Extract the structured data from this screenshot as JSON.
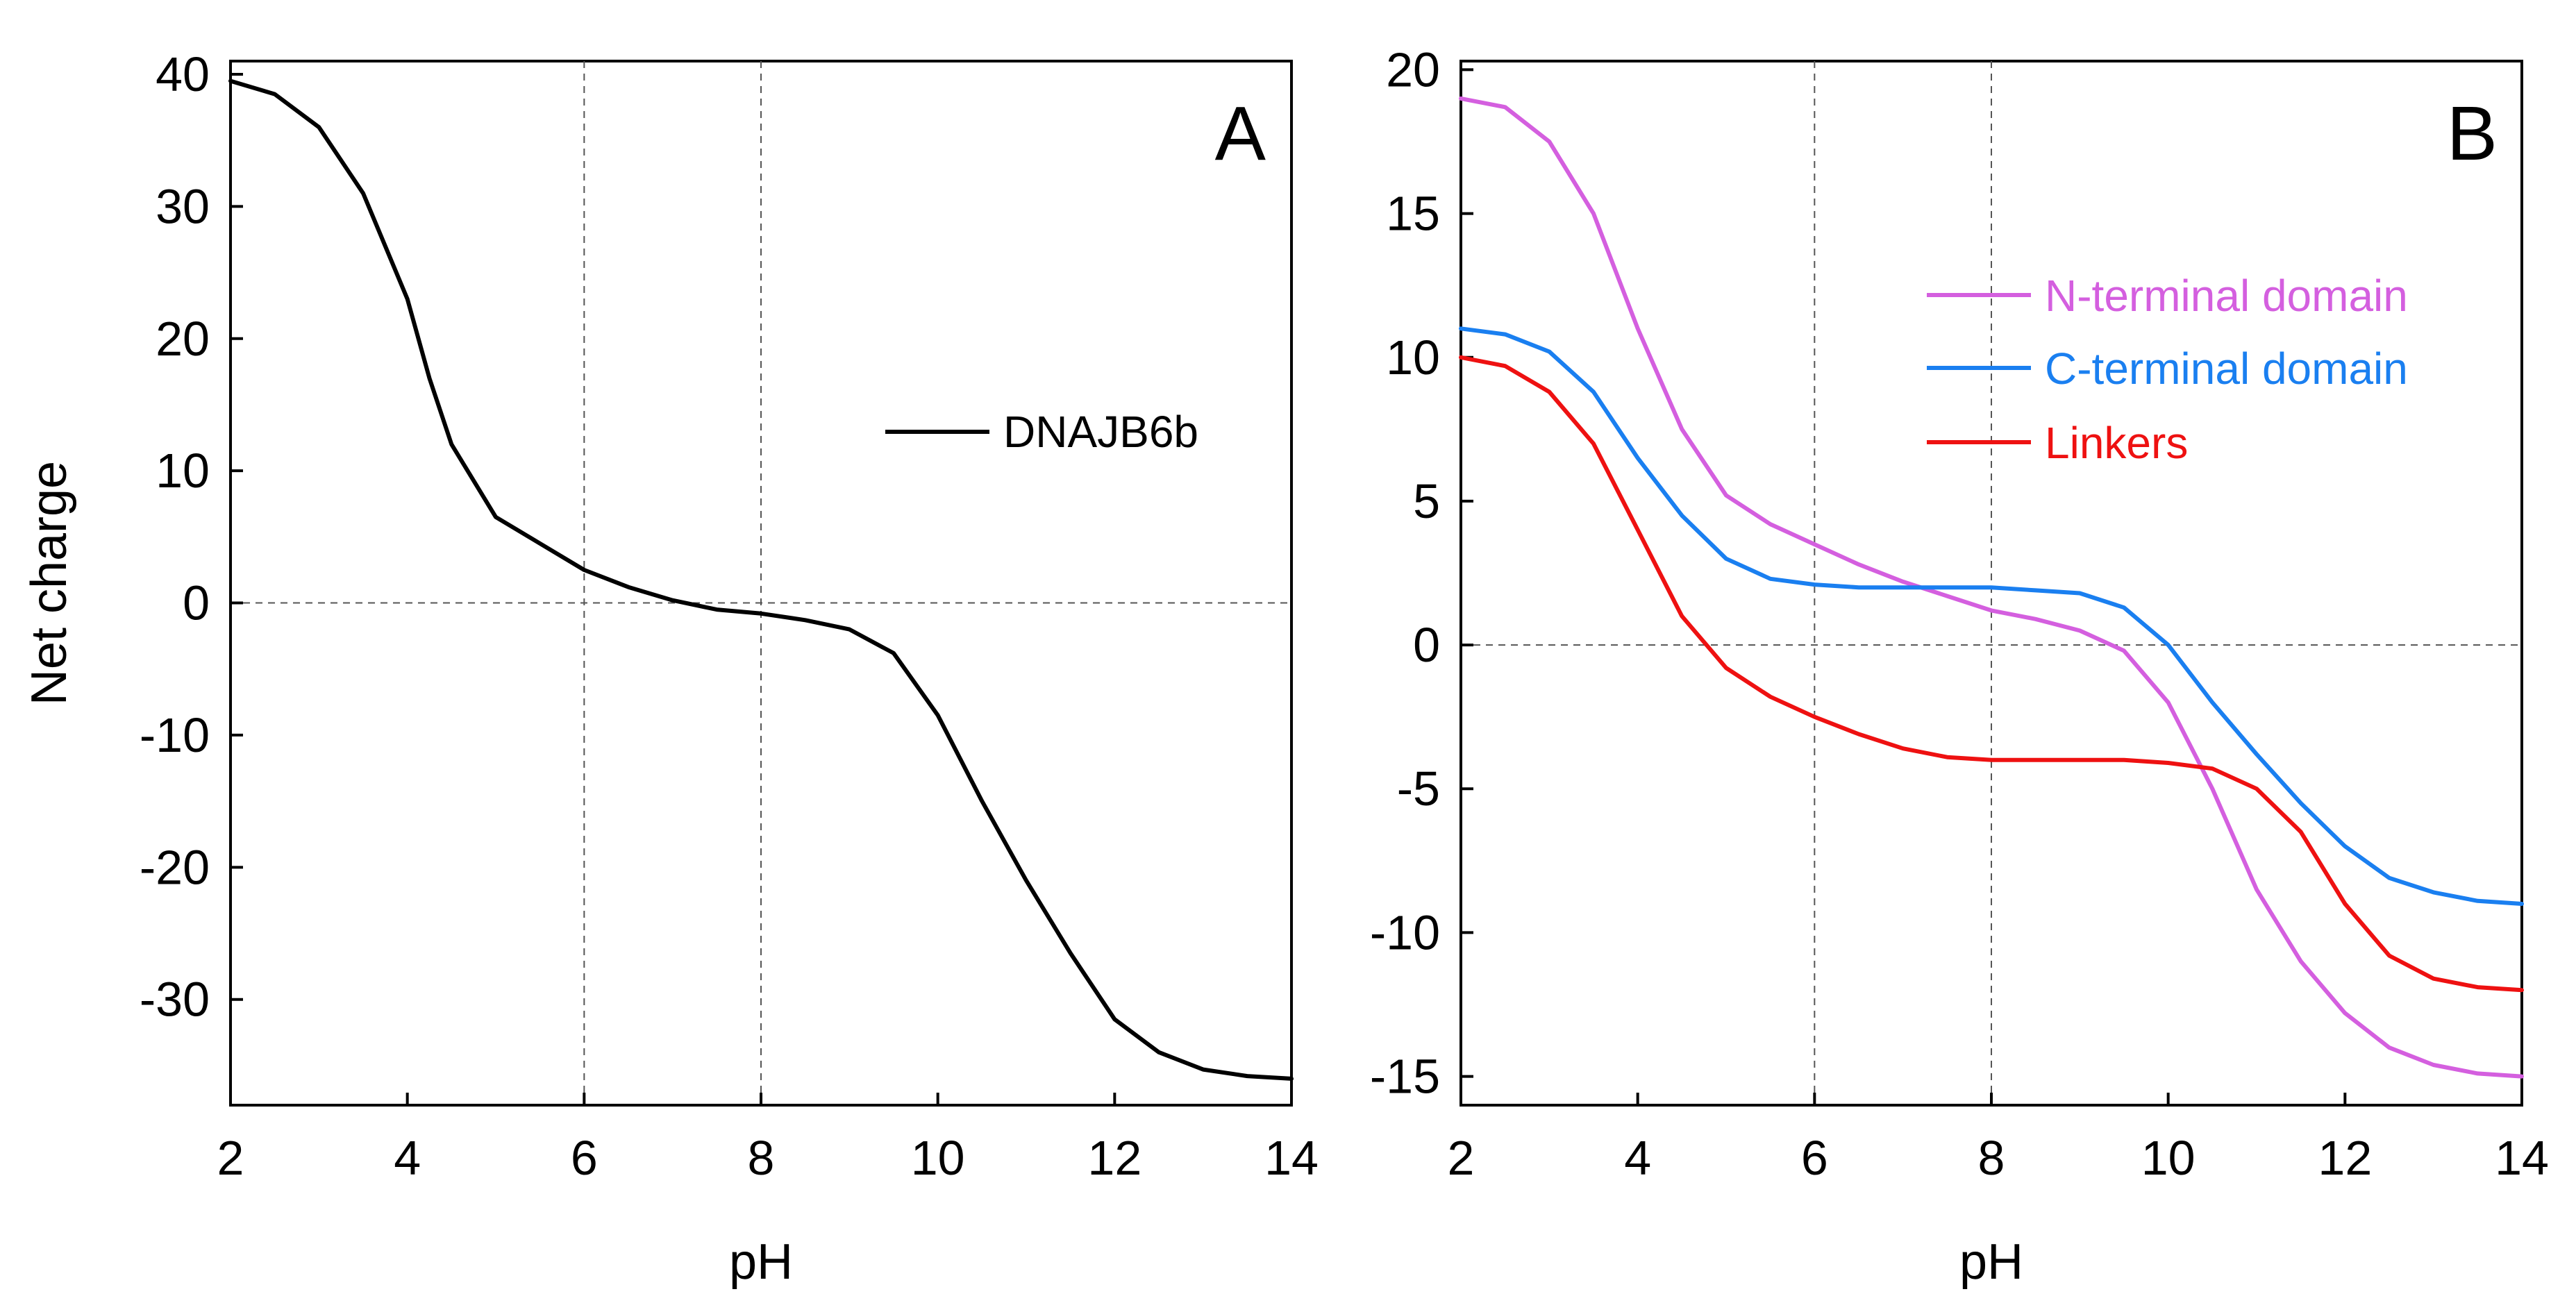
{
  "colors": {
    "axis": "#000000",
    "refline": "#555555",
    "dnajb6b": "#000000",
    "nterm": "#d45fdf",
    "cterm": "#1a7ff0",
    "linkers": "#ee1111"
  },
  "chart_data": [
    {
      "type": "line",
      "panel_label": "A",
      "xlabel": "pH",
      "ylabel": "Net charge",
      "xlim": [
        2,
        14
      ],
      "ylim": [
        -38,
        41
      ],
      "xticks": [
        2,
        4,
        6,
        8,
        10,
        12,
        14
      ],
      "xtick_labels": [
        "2",
        "4",
        "6",
        "8",
        "10",
        "12",
        "14"
      ],
      "yticks": [
        40,
        30,
        20,
        10,
        0,
        -10,
        -20,
        -30
      ],
      "ytick_labels": [
        "40",
        "30",
        "20",
        "10",
        "0",
        "-10",
        "-20",
        "-30"
      ],
      "ref_x": [
        6,
        8
      ],
      "ref_y": [
        0
      ],
      "legend_position": "middle-right",
      "series": [
        {
          "name": "DNAJB6b",
          "color_key": "dnajb6b",
          "x": [
            2,
            2.5,
            3,
            3.5,
            4,
            4.25,
            4.5,
            5,
            5.5,
            6,
            6.5,
            7,
            7.5,
            8,
            8.5,
            9,
            9.5,
            10,
            10.5,
            11,
            11.5,
            12,
            12.5,
            13,
            13.5,
            14
          ],
          "y": [
            39.5,
            38.5,
            36,
            31,
            23,
            17,
            12,
            6.5,
            4.5,
            2.5,
            1.2,
            0.2,
            -0.5,
            -0.8,
            -1.3,
            -2,
            -3.8,
            -8.5,
            -15,
            -21,
            -26.5,
            -31.5,
            -34,
            -35.3,
            -35.8,
            -36
          ]
        }
      ]
    },
    {
      "type": "line",
      "panel_label": "B",
      "xlabel": "pH",
      "ylabel": "",
      "xlim": [
        2,
        14
      ],
      "ylim": [
        -16,
        20.3
      ],
      "xticks": [
        2,
        4,
        6,
        8,
        10,
        12,
        14
      ],
      "xtick_labels": [
        "2",
        "4",
        "6",
        "8",
        "10",
        "12",
        "14"
      ],
      "yticks": [
        20,
        15,
        10,
        5,
        0,
        -5,
        -10,
        -15
      ],
      "ytick_labels": [
        "20",
        "15",
        "10",
        "5",
        "0",
        "-5",
        "-10",
        "-15"
      ],
      "ref_x": [
        6,
        8
      ],
      "ref_y": [
        0
      ],
      "legend_position": "top-right",
      "series": [
        {
          "name": "N-terminal domain",
          "color_key": "nterm",
          "x": [
            2,
            2.5,
            3,
            3.5,
            4,
            4.5,
            5,
            5.5,
            6,
            6.5,
            7,
            7.5,
            8,
            8.5,
            9,
            9.5,
            10,
            10.5,
            11,
            11.5,
            12,
            12.5,
            13,
            13.5,
            14
          ],
          "y": [
            19,
            18.7,
            17.5,
            15,
            11,
            7.5,
            5.2,
            4.2,
            3.5,
            2.8,
            2.2,
            1.7,
            1.2,
            0.9,
            0.5,
            -0.2,
            -2,
            -5,
            -8.5,
            -11,
            -12.8,
            -14,
            -14.6,
            -14.9,
            -15
          ]
        },
        {
          "name": "C-terminal domain",
          "color_key": "cterm",
          "x": [
            2,
            2.5,
            3,
            3.5,
            4,
            4.5,
            5,
            5.5,
            6,
            6.5,
            7,
            7.5,
            8,
            8.5,
            9,
            9.5,
            10,
            10.5,
            11,
            11.5,
            12,
            12.5,
            13,
            13.5,
            14
          ],
          "y": [
            11,
            10.8,
            10.2,
            8.8,
            6.5,
            4.5,
            3,
            2.3,
            2.1,
            2,
            2,
            2,
            2,
            1.9,
            1.8,
            1.3,
            0,
            -2,
            -3.8,
            -5.5,
            -7,
            -8.1,
            -8.6,
            -8.9,
            -9
          ]
        },
        {
          "name": "Linkers",
          "color_key": "linkers",
          "x": [
            2,
            2.5,
            3,
            3.5,
            4,
            4.5,
            5,
            5.5,
            6,
            6.5,
            7,
            7.5,
            8,
            8.5,
            9,
            9.5,
            10,
            10.5,
            11,
            11.5,
            12,
            12.5,
            13,
            13.5,
            14
          ],
          "y": [
            10,
            9.7,
            8.8,
            7,
            4,
            1,
            -0.8,
            -1.8,
            -2.5,
            -3.1,
            -3.6,
            -3.9,
            -4,
            -4,
            -4,
            -4,
            -4.1,
            -4.3,
            -5,
            -6.5,
            -9,
            -10.8,
            -11.6,
            -11.9,
            -12
          ]
        }
      ]
    }
  ]
}
